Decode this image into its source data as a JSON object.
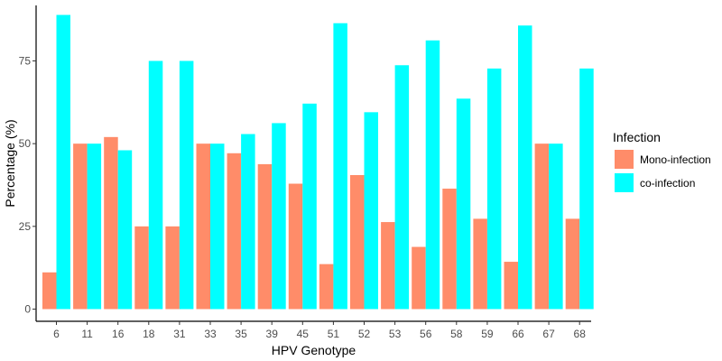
{
  "colors": {
    "mono": "#ff8c69",
    "co": "#00ffff",
    "axis": "#000000",
    "tick_text": "#4d4d4d"
  },
  "chart_data": {
    "type": "bar",
    "xlabel": "HPV Genotype",
    "ylabel": "Percentage (%)",
    "ylim": [
      0,
      90
    ],
    "yticks": [
      0,
      25,
      50,
      75
    ],
    "grid": false,
    "legend": {
      "title": "Infection",
      "placement": "right"
    },
    "categories": [
      "6",
      "11",
      "16",
      "18",
      "31",
      "33",
      "35",
      "39",
      "45",
      "51",
      "52",
      "53",
      "56",
      "58",
      "59",
      "66",
      "67",
      "68"
    ],
    "series": [
      {
        "name": "Mono-infection",
        "values": [
          11.1,
          50,
          52,
          25,
          25,
          50,
          47.1,
          43.8,
          37.9,
          13.6,
          40.5,
          26.3,
          18.8,
          36.4,
          27.3,
          14.3,
          50,
          27.3
        ]
      },
      {
        "name": "co-infection",
        "values": [
          88.9,
          50,
          48,
          75,
          75,
          50,
          52.9,
          56.2,
          62.1,
          86.4,
          59.5,
          73.7,
          81.2,
          63.6,
          72.7,
          85.7,
          50,
          72.7
        ]
      }
    ]
  }
}
